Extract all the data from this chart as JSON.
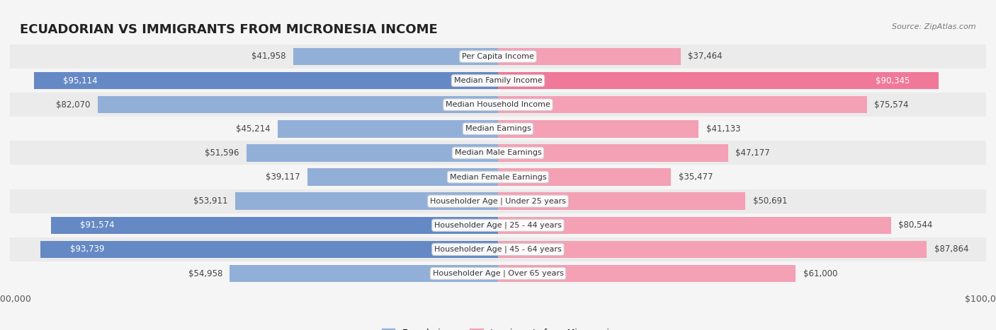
{
  "title": "ECUADORIAN VS IMMIGRANTS FROM MICRONESIA INCOME",
  "source": "Source: ZipAtlas.com",
  "categories": [
    "Per Capita Income",
    "Median Family Income",
    "Median Household Income",
    "Median Earnings",
    "Median Male Earnings",
    "Median Female Earnings",
    "Householder Age | Under 25 years",
    "Householder Age | 25 - 44 years",
    "Householder Age | 45 - 64 years",
    "Householder Age | Over 65 years"
  ],
  "ecuadorian_values": [
    41958,
    95114,
    82070,
    45214,
    51596,
    39117,
    53911,
    91574,
    93739,
    54958
  ],
  "micronesia_values": [
    37464,
    90345,
    75574,
    41133,
    47177,
    35477,
    50691,
    80544,
    87864,
    61000
  ],
  "ecuadorian_labels": [
    "$41,958",
    "$95,114",
    "$82,070",
    "$45,214",
    "$51,596",
    "$39,117",
    "$53,911",
    "$91,574",
    "$93,739",
    "$54,958"
  ],
  "micronesia_labels": [
    "$37,464",
    "$90,345",
    "$75,574",
    "$41,133",
    "$47,177",
    "$35,477",
    "$50,691",
    "$80,544",
    "$87,864",
    "$61,000"
  ],
  "max_value": 100000,
  "bar_color_ecuadorian": "#92afd7",
  "bar_color_micronesia": "#f4a0b5",
  "bar_color_ecuadorian_full": "#6589c4",
  "bar_color_micronesia_full": "#f07898",
  "label_color_dark": "#555555",
  "label_color_white": "#ffffff",
  "bg_color": "#f5f5f5",
  "row_bg_even": "#ebebeb",
  "row_bg_odd": "#f5f5f5",
  "center_box_bg": "#f0f0f0",
  "center_box_border": "#cccccc"
}
